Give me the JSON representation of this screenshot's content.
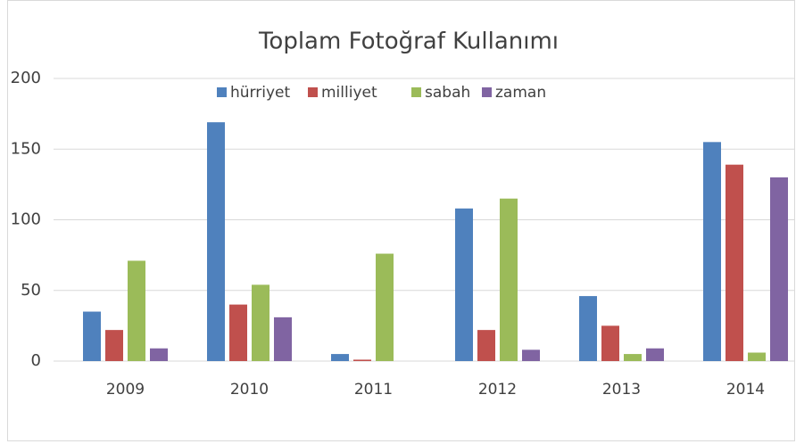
{
  "chart_data": {
    "type": "bar",
    "title": "Toplam Fotoğraf Kullanımı",
    "categories": [
      "2009",
      "2010",
      "2011",
      "2012",
      "2013",
      "2014"
    ],
    "series": [
      {
        "name": "hürriyet",
        "color": "#4f81bd",
        "values": [
          35,
          169,
          5,
          108,
          46,
          155
        ]
      },
      {
        "name": "milliyet",
        "color": "#c0504d",
        "values": [
          22,
          40,
          1,
          22,
          25,
          139
        ]
      },
      {
        "name": "sabah",
        "color": "#9bbb59",
        "values": [
          71,
          54,
          76,
          115,
          5,
          6
        ]
      },
      {
        "name": "zaman",
        "color": "#8064a2",
        "values": [
          9,
          31,
          0,
          8,
          9,
          130
        ]
      }
    ],
    "ylim": [
      0,
      200
    ],
    "yticks": [
      0,
      50,
      100,
      150,
      200
    ],
    "grid": true,
    "legend": "top"
  }
}
